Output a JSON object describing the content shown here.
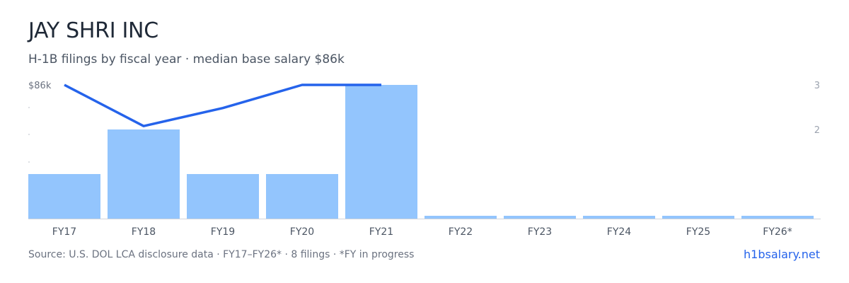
{
  "header": {
    "title": "JAY SHRI INC",
    "subtitle": "H-1B filings by fiscal year · median base salary $86k"
  },
  "footer": {
    "source": "Source: U.S. DOL LCA disclosure data · FY17–FY26* · 8 filings · *FY in progress",
    "brand": "h1bsalary.net"
  },
  "chart_data": {
    "type": "bar",
    "categories": [
      "FY17",
      "FY18",
      "FY19",
      "FY20",
      "FY21",
      "FY22",
      "FY23",
      "FY24",
      "FY25",
      "FY26*"
    ],
    "series": [
      {
        "values": [
          1,
          2,
          1,
          1,
          3,
          0,
          0,
          0,
          0,
          0
        ],
        "axis": "right"
      },
      {
        "type": "line",
        "values": [
          86,
          78,
          81.5,
          86,
          86,
          null,
          null,
          null,
          null,
          null
        ],
        "axis": "left"
      }
    ],
    "y_left": {
      "tick_labels": [
        "$86k"
      ],
      "max": 86,
      "min": 60
    },
    "y_right": {
      "tick_values": [
        2,
        3
      ],
      "min": 0,
      "max": 3
    },
    "colors": {
      "bar": "#93c5fd",
      "line": "#2563eb",
      "axis_text": "#6b7280",
      "baseline": "#d1d5db"
    },
    "grid": false,
    "legend": "none"
  }
}
